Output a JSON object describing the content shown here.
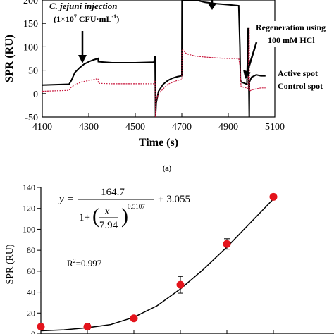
{
  "chart_data": [
    {
      "type": "line",
      "xlabel": "Time (s)",
      "ylabel": "SPR (RU)",
      "xlim": [
        4100,
        5100
      ],
      "ylim": [
        -50,
        200
      ],
      "x_ticks": [
        "4100",
        "4300",
        "4500",
        "4700",
        "4900",
        "5100"
      ],
      "y_ticks": [
        "-50",
        "0",
        "50",
        "100",
        "150",
        "200"
      ],
      "annotations": {
        "injection_line1": "C. jejuni injection",
        "injection_line2": "(1×10",
        "injection_exp": "7",
        "injection_unit": " CFU·mL",
        "injection_unit_exp": "-1",
        "injection_close": ")",
        "regen_line1": "Regeneration using",
        "regen_line2": "100 mM HCl"
      },
      "legend": [
        "Active spot",
        "Control spot"
      ],
      "panel_label": "(a)",
      "series": [
        {
          "color": "#000000",
          "x": [
            4100,
            4215,
            4225,
            4240,
            4260,
            4280,
            4300,
            4320,
            4340,
            4341,
            4400,
            4500,
            4580,
            4585,
            4587,
            4590,
            4600,
            4620,
            4640,
            4660,
            4680,
            4700,
            4701,
            4702,
            4720,
            4760,
            4800,
            4850,
            4900,
            4945,
            4950,
            4952,
            4955,
            4970,
            4980,
            4985,
            4990,
            4991,
            5000,
            5020,
            5040,
            5060
          ],
          "y": [
            18,
            20,
            28,
            45,
            55,
            63,
            68,
            72,
            75,
            68,
            66,
            66,
            67,
            80,
            -50,
            -20,
            5,
            20,
            28,
            33,
            36,
            38,
            200,
            205,
            205,
            200,
            195,
            192,
            190,
            188,
            100,
            30,
            25,
            22,
            20,
            140,
            -50,
            25,
            35,
            40,
            38,
            38
          ]
        },
        {
          "color": "#c8163c",
          "x": [
            4100,
            4215,
            4225,
            4245,
            4270,
            4300,
            4340,
            4341,
            4400,
            4500,
            4580,
            4585,
            4587,
            4590,
            4600,
            4640,
            4680,
            4700,
            4701,
            4702,
            4720,
            4760,
            4800,
            4850,
            4900,
            4945,
            4950,
            4955,
            4970,
            4980,
            4985,
            4990,
            4992,
            5000,
            5020,
            5040,
            5060
          ],
          "y": [
            5,
            7,
            14,
            20,
            25,
            28,
            32,
            22,
            21,
            21,
            21,
            28,
            -50,
            -15,
            0,
            20,
            28,
            30,
            95,
            95,
            85,
            80,
            78,
            76,
            75,
            75,
            60,
            15,
            13,
            12,
            10,
            140,
            5,
            8,
            10,
            12,
            12
          ]
        }
      ]
    },
    {
      "type": "scatter",
      "xlabel": "",
      "ylabel": "SPR (RU)",
      "ylim": [
        0,
        140
      ],
      "y_ticks": [
        "0",
        "20",
        "40",
        "60",
        "80",
        "100",
        "120",
        "140"
      ],
      "points": [
        {
          "x": 0.0,
          "y": 7,
          "err": 0
        },
        {
          "x": 1.0,
          "y": 7,
          "err": 3
        },
        {
          "x": 2.0,
          "y": 15,
          "err": 0
        },
        {
          "x": 3.0,
          "y": 47,
          "err": 8
        },
        {
          "x": 4.0,
          "y": 86,
          "err": 5
        },
        {
          "x": 5.0,
          "y": 131,
          "err": 0
        }
      ],
      "fit_curve": {
        "x": [
          0,
          0.5,
          1,
          1.5,
          2,
          2.5,
          3,
          3.5,
          4,
          4.5,
          5
        ],
        "y": [
          3,
          4,
          6,
          9,
          16,
          27,
          43,
          62,
          83,
          106,
          129
        ]
      },
      "equation": {
        "lhs": "y",
        "eq": "=",
        "numerator": "164.7",
        "one_plus": "1+",
        "x_over": "x",
        "denominator": "7.94",
        "exponent": "0.5107",
        "tail": "+ 3.055"
      },
      "r2_label": "R",
      "r2_exp": "2",
      "r2_value": "=0.997"
    }
  ]
}
